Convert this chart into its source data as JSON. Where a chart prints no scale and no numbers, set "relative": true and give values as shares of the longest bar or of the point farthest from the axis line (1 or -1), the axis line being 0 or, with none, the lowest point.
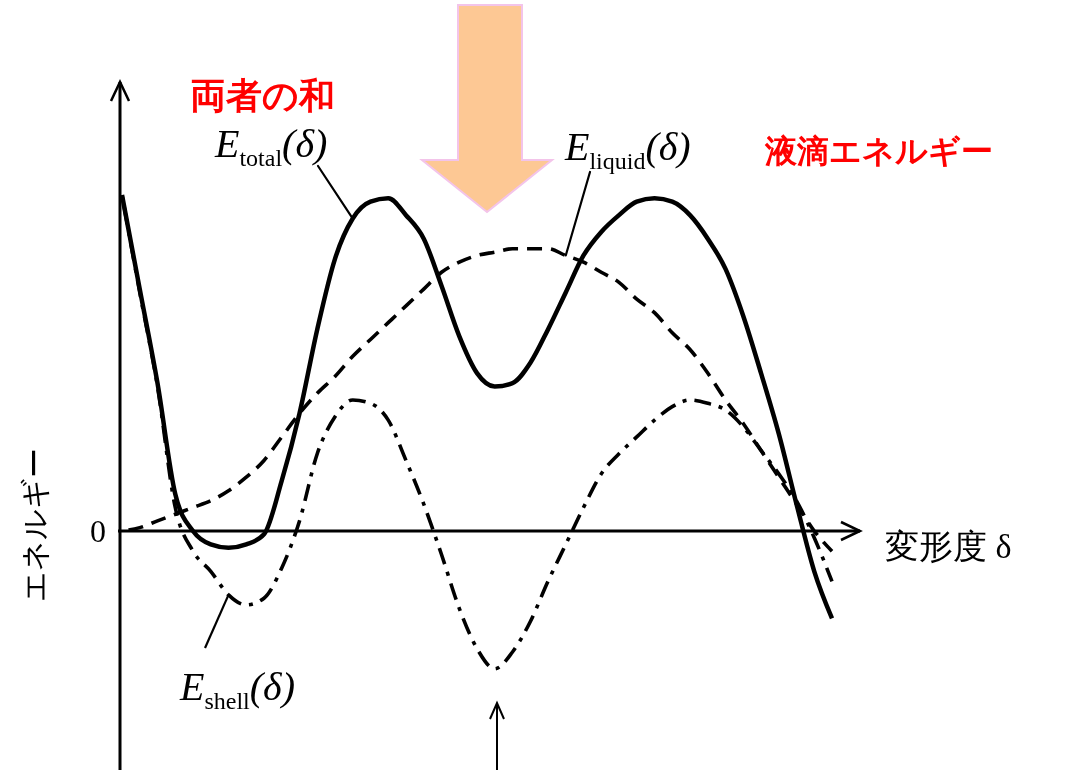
{
  "chart_data": {
    "type": "line",
    "relative": true,
    "xlabel": "変形度 δ",
    "ylabel": "エネルギー",
    "categories": [
      null,
      null,
      null,
      null,
      null,
      null,
      null,
      null,
      null,
      null,
      null,
      null,
      null,
      null,
      null,
      null,
      null,
      null,
      null,
      null,
      null,
      null,
      null,
      null,
      null,
      null,
      null,
      null,
      null,
      null,
      null,
      null,
      null,
      null,
      null,
      null,
      null,
      null,
      null,
      null,
      null
    ],
    "series": [
      {
        "name": "E$_{total}$(δ)",
        "color": "#000000",
        "line_style": "solid",
        "values": [
          1.0,
          0.72,
          0.44,
          0.11,
          0.0,
          -0.04,
          -0.05,
          -0.04,
          -0.01,
          0.15,
          0.35,
          0.6,
          0.81,
          0.93,
          0.98,
          0.99,
          0.94,
          0.87,
          0.73,
          0.58,
          0.47,
          0.43,
          0.44,
          0.5,
          0.6,
          0.71,
          0.82,
          0.89,
          0.94,
          0.98,
          0.99,
          0.98,
          0.94,
          0.87,
          0.78,
          0.64,
          0.47,
          0.29,
          0.08,
          -0.12,
          -0.26
        ]
      },
      {
        "name": "E$_{liquid}$(δ)",
        "color": "#000000",
        "line_style": "dashed",
        "values": [
          0.0,
          0.01,
          0.03,
          0.05,
          0.07,
          0.09,
          0.12,
          0.16,
          0.21,
          0.28,
          0.35,
          0.41,
          0.46,
          0.52,
          0.57,
          0.62,
          0.67,
          0.72,
          0.77,
          0.8,
          0.82,
          0.83,
          0.84,
          0.84,
          0.84,
          0.82,
          0.8,
          0.77,
          0.74,
          0.69,
          0.65,
          0.59,
          0.54,
          0.47,
          0.39,
          0.32,
          0.24,
          0.16,
          0.08,
          0.0,
          -0.06
        ]
      },
      {
        "name": "E$_{shell}$(δ)",
        "color": "#000000",
        "line_style": "dashdot",
        "values": [
          1.0,
          0.71,
          0.43,
          0.07,
          -0.06,
          -0.12,
          -0.19,
          -0.22,
          -0.2,
          -0.11,
          0.03,
          0.23,
          0.34,
          0.39,
          0.38,
          0.33,
          0.21,
          0.08,
          -0.07,
          -0.23,
          -0.35,
          -0.41,
          -0.36,
          -0.27,
          -0.15,
          -0.04,
          0.07,
          0.17,
          0.23,
          0.28,
          0.33,
          0.37,
          0.39,
          0.38,
          0.36,
          0.31,
          0.24,
          0.17,
          0.09,
          -0.02,
          -0.15
        ]
      }
    ],
    "annotations": [
      "両者の和",
      "液滴エネルギー",
      "0"
    ]
  }
}
